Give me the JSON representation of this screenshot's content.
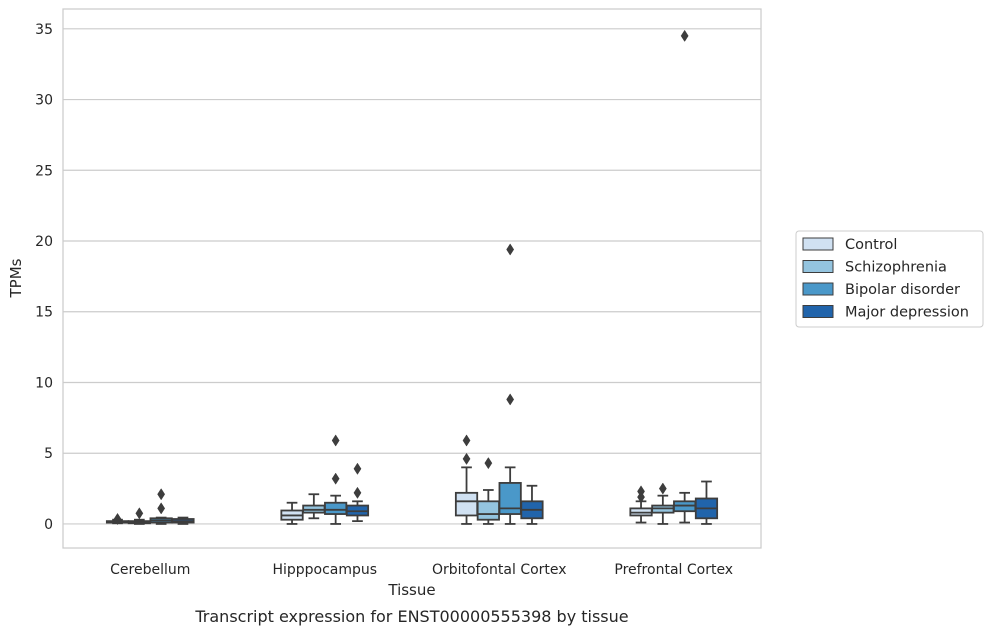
{
  "caption": "Transcript expression for ENST00000555398 by tissue",
  "chart_data": {
    "type": "box",
    "xlabel": "Tissue",
    "ylabel": "TPMs",
    "ylim": [
      -1.7,
      36.4
    ],
    "yticks": [
      0,
      5,
      10,
      15,
      20,
      25,
      30,
      35
    ],
    "grid": "horizontal",
    "legend_position": "right",
    "categories": [
      "Cerebellum",
      "Hipppocampus",
      "Orbitofontal Cortex",
      "Prefrontal Cortex"
    ],
    "series": [
      {
        "name": "Control",
        "color": "#d0e1f2",
        "boxes": [
          {
            "whislo": 0.05,
            "q1": 0.1,
            "med": 0.15,
            "q3": 0.2,
            "whishi": 0.3,
            "fliers": [
              0.35
            ]
          },
          {
            "whislo": 0.0,
            "q1": 0.3,
            "med": 0.6,
            "q3": 0.95,
            "whishi": 1.5,
            "fliers": []
          },
          {
            "whislo": 0.0,
            "q1": 0.6,
            "med": 1.6,
            "q3": 2.2,
            "whishi": 4.0,
            "fliers": [
              4.6,
              5.9
            ]
          },
          {
            "whislo": 0.1,
            "q1": 0.6,
            "med": 0.8,
            "q3": 1.1,
            "whishi": 1.6,
            "fliers": [
              1.9,
              2.3
            ]
          }
        ]
      },
      {
        "name": "Schizophrenia",
        "color": "#94c4df",
        "boxes": [
          {
            "whislo": 0.0,
            "q1": 0.05,
            "med": 0.1,
            "q3": 0.2,
            "whishi": 0.3,
            "fliers": [
              0.75
            ]
          },
          {
            "whislo": 0.4,
            "q1": 0.8,
            "med": 1.0,
            "q3": 1.3,
            "whishi": 2.1,
            "fliers": []
          },
          {
            "whislo": 0.0,
            "q1": 0.3,
            "med": 0.7,
            "q3": 1.6,
            "whishi": 2.4,
            "fliers": [
              4.3
            ]
          },
          {
            "whislo": 0.0,
            "q1": 0.8,
            "med": 1.1,
            "q3": 1.3,
            "whishi": 2.0,
            "fliers": [
              2.5
            ]
          }
        ]
      },
      {
        "name": "Bipolar disorder",
        "color": "#4a98c9",
        "boxes": [
          {
            "whislo": 0.0,
            "q1": 0.1,
            "med": 0.25,
            "q3": 0.4,
            "whishi": 0.45,
            "fliers": [
              1.1,
              2.1
            ]
          },
          {
            "whislo": 0.0,
            "q1": 0.7,
            "med": 1.0,
            "q3": 1.5,
            "whishi": 2.0,
            "fliers": [
              3.2,
              5.9
            ]
          },
          {
            "whislo": 0.0,
            "q1": 0.7,
            "med": 1.1,
            "q3": 2.9,
            "whishi": 4.0,
            "fliers": [
              8.8,
              19.4
            ]
          },
          {
            "whislo": 0.1,
            "q1": 0.9,
            "med": 1.3,
            "q3": 1.6,
            "whishi": 2.2,
            "fliers": [
              34.5
            ]
          }
        ]
      },
      {
        "name": "Major depression",
        "color": "#2164ab",
        "boxes": [
          {
            "whislo": 0.0,
            "q1": 0.1,
            "med": 0.2,
            "q3": 0.35,
            "whishi": 0.45,
            "fliers": []
          },
          {
            "whislo": 0.2,
            "q1": 0.6,
            "med": 0.9,
            "q3": 1.3,
            "whishi": 1.6,
            "fliers": [
              2.2,
              3.9
            ]
          },
          {
            "whislo": 0.0,
            "q1": 0.4,
            "med": 1.0,
            "q3": 1.6,
            "whishi": 2.7,
            "fliers": []
          },
          {
            "whislo": 0.0,
            "q1": 0.4,
            "med": 1.1,
            "q3": 1.8,
            "whishi": 3.0,
            "fliers": []
          }
        ]
      }
    ]
  }
}
